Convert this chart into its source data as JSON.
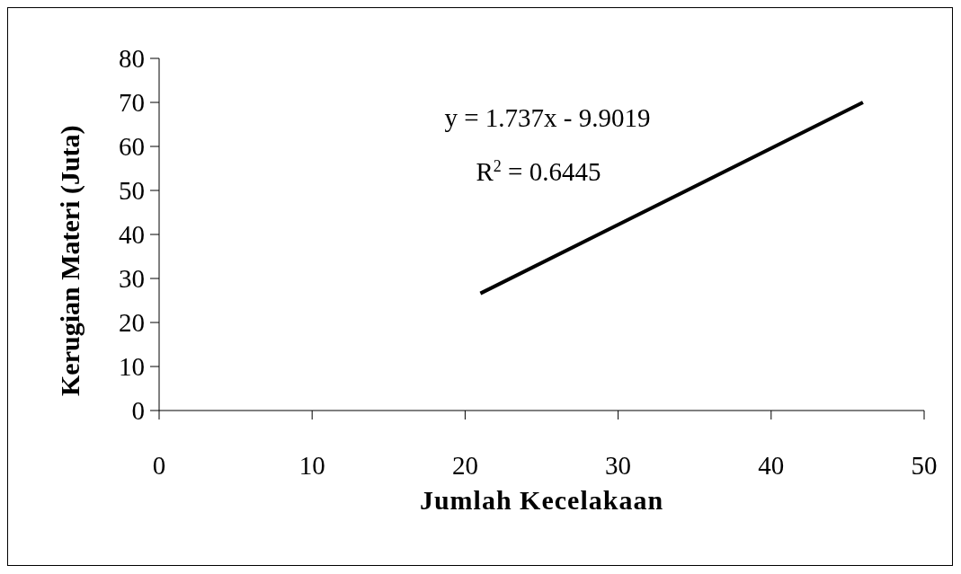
{
  "chart_data": {
    "type": "line",
    "xlabel": "Jumlah Kecelakaan",
    "ylabel": "Kerugian Materi (Juta)",
    "annotations": [
      "y = 1.737x - 9.9019",
      "R$^{2}$ = 0.6445"
    ],
    "x": [
      21,
      46
    ],
    "series": [
      {
        "color": "#000000",
        "values": [
          26.6,
          70
        ]
      }
    ],
    "xlim": [
      0,
      50
    ],
    "xticks": [
      0,
      10,
      20,
      30,
      40,
      50
    ],
    "ylim": [
      0,
      80
    ],
    "yticks": [
      0,
      10,
      20,
      30,
      40,
      50,
      60,
      70,
      80
    ],
    "marker": "none",
    "line_style": "solid"
  }
}
